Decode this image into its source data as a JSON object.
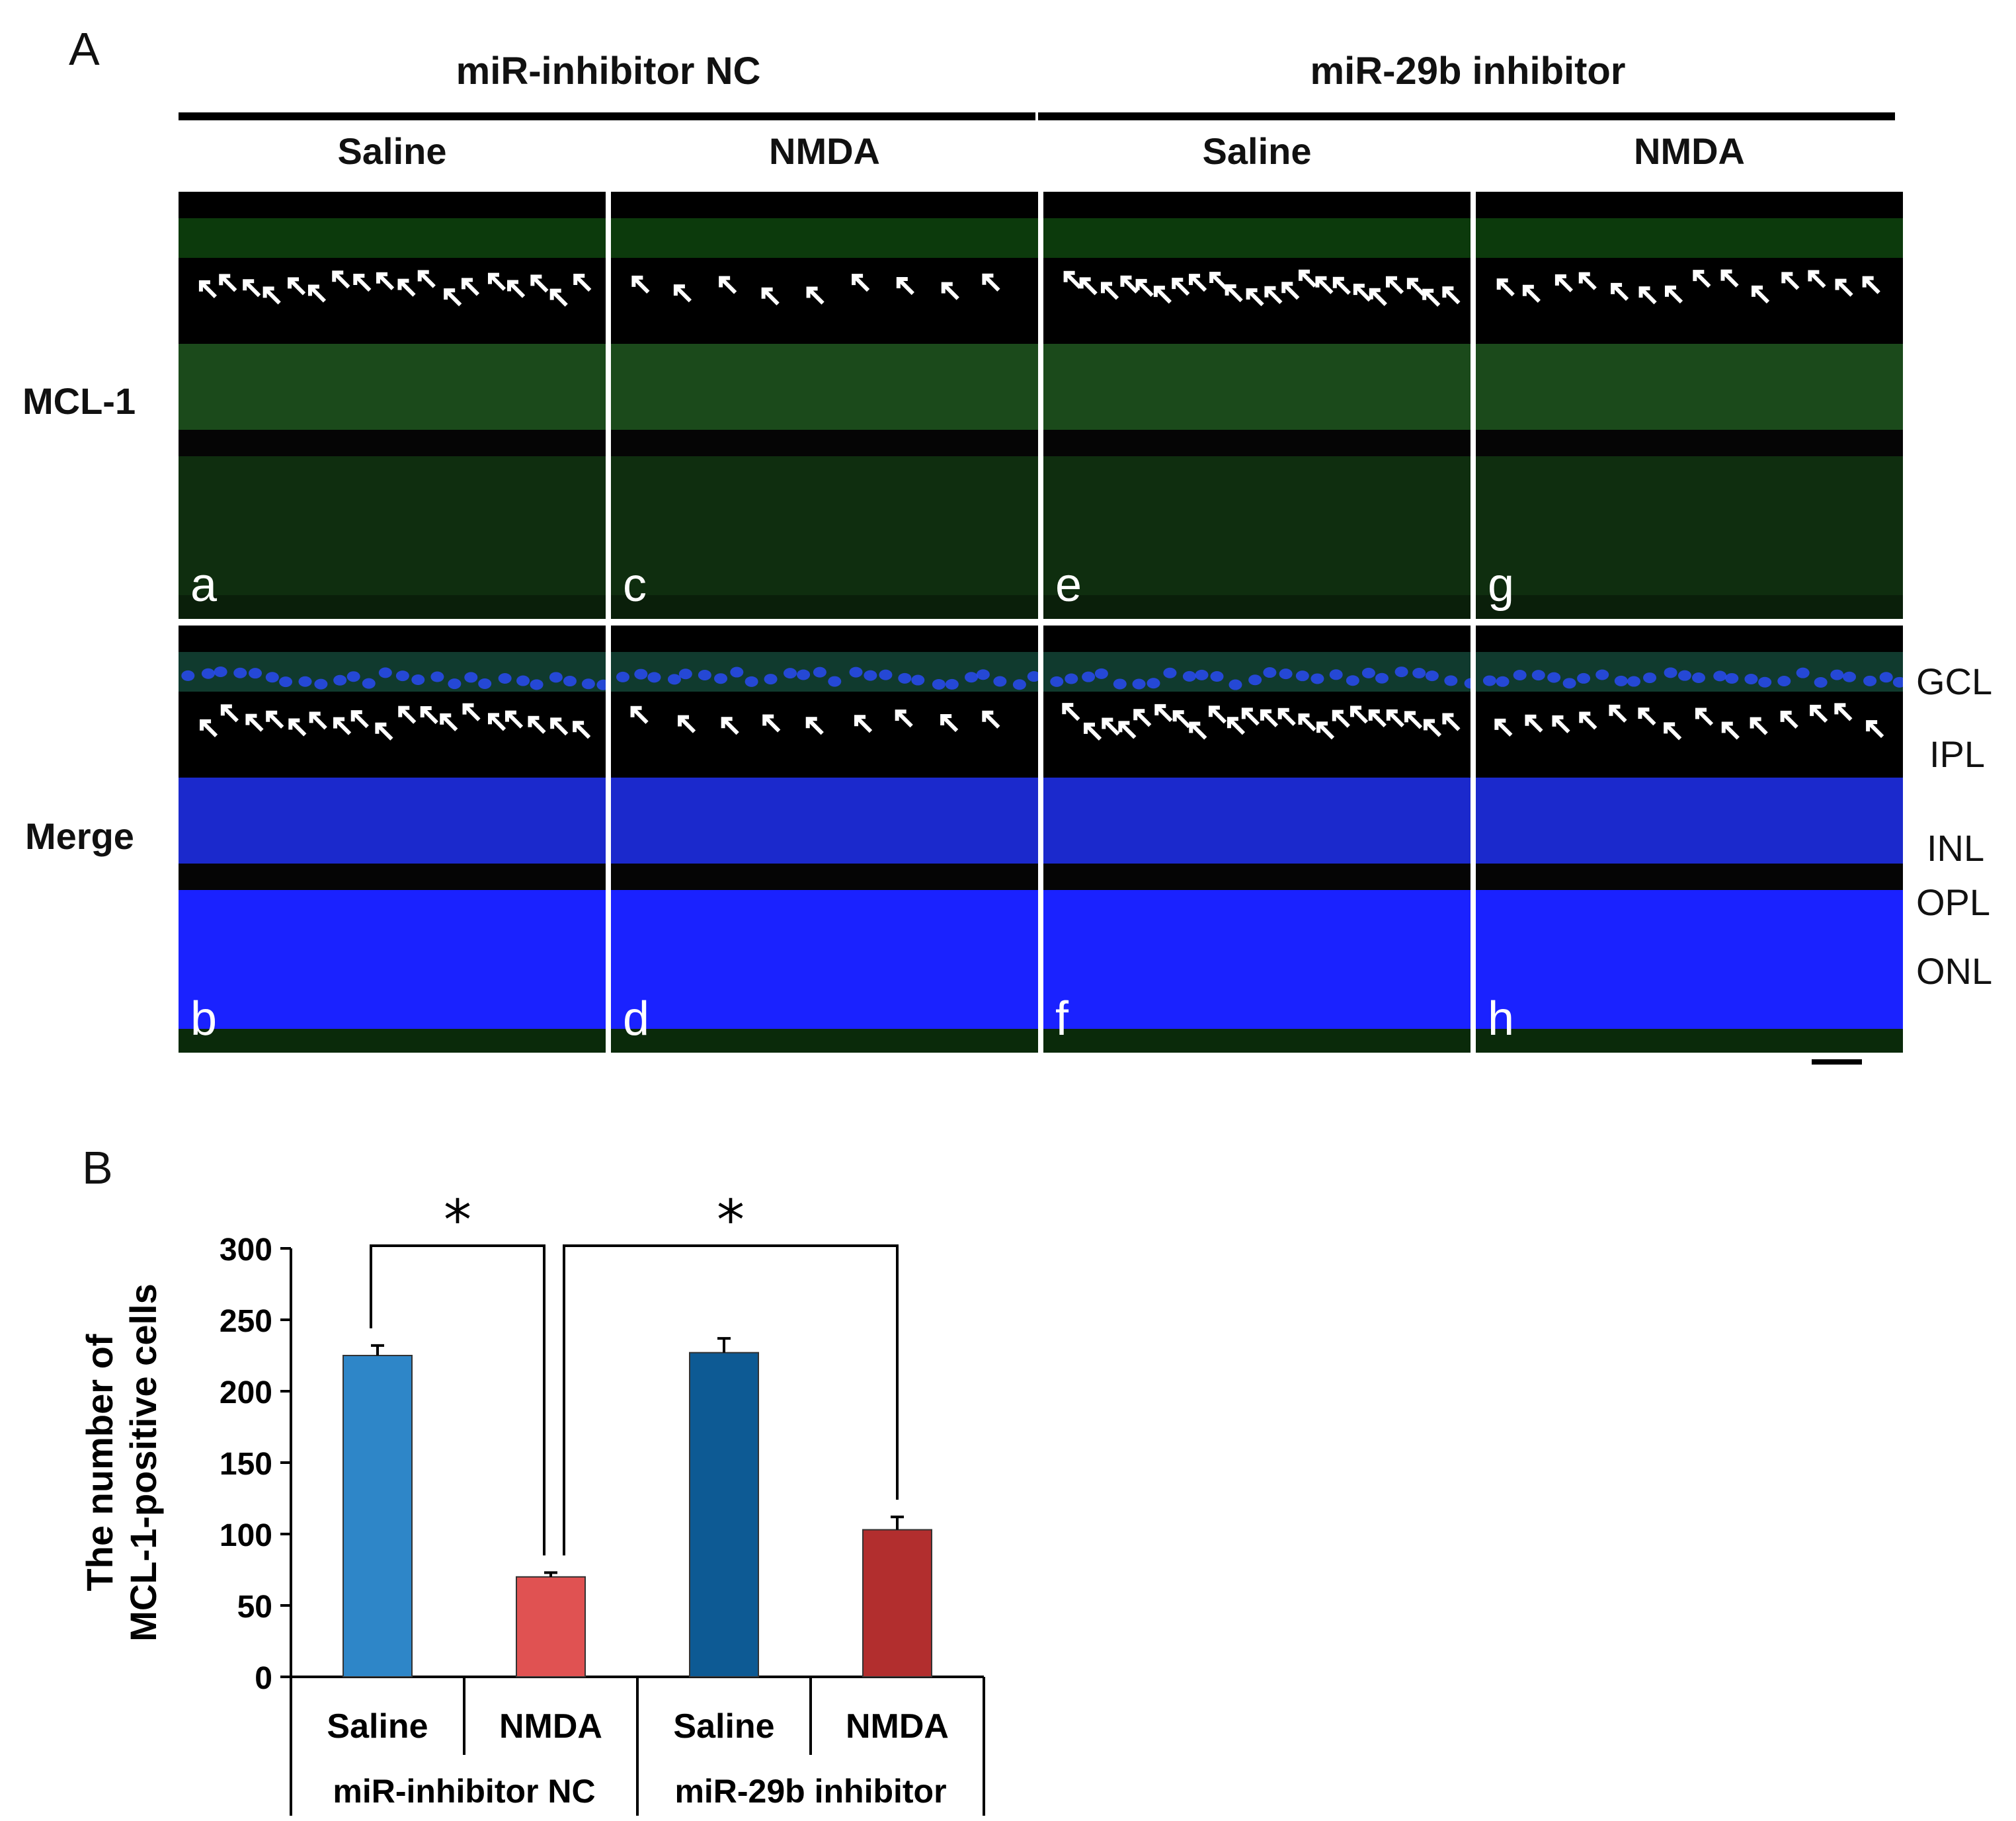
{
  "figure": {
    "panel_a_label": "A",
    "panel_b_label": "B",
    "groups": [
      "miR-inhibitor NC",
      "miR-29b inhibitor"
    ],
    "columns": [
      "Saline",
      "NMDA",
      "Saline",
      "NMDA"
    ],
    "rows": [
      "MCL-1",
      "Merge"
    ],
    "tiles": [
      {
        "label": "a",
        "stain": "mcl1",
        "arrows": 18
      },
      {
        "label": "c",
        "stain": "mcl1",
        "arrows": 9
      },
      {
        "label": "e",
        "stain": "mcl1",
        "arrows": 22
      },
      {
        "label": "g",
        "stain": "mcl1",
        "arrows": 14
      },
      {
        "label": "b",
        "stain": "merge",
        "arrows": 18
      },
      {
        "label": "d",
        "stain": "merge",
        "arrows": 9
      },
      {
        "label": "f",
        "stain": "merge",
        "arrows": 22
      },
      {
        "label": "h",
        "stain": "merge",
        "arrows": 14
      }
    ],
    "layers": [
      "GCL",
      "IPL",
      "INL",
      "OPL",
      "ONL"
    ],
    "colors": {
      "green": "#2f9a2f",
      "blue": "#1a1aff",
      "black": "#000000"
    }
  },
  "chart_data": {
    "type": "bar",
    "ylabel_line1": "The number of",
    "ylabel_line2": "MCL-1-positive cells",
    "ylim": [
      0,
      300
    ],
    "yticks": [
      0,
      50,
      100,
      150,
      200,
      250,
      300
    ],
    "categories": [
      "Saline",
      "NMDA",
      "Saline",
      "NMDA"
    ],
    "groups": [
      "miR-inhibitor NC",
      "miR-29b inhibitor"
    ],
    "values": [
      225,
      70,
      227,
      103
    ],
    "errors": [
      7,
      3,
      10,
      9
    ],
    "colors": [
      "#2e86c8",
      "#e05252",
      "#0d5a94",
      "#b22e2e"
    ],
    "significance": [
      {
        "pair": [
          0,
          1
        ],
        "mark": "*"
      },
      {
        "pair": [
          1,
          3
        ],
        "mark": "*"
      }
    ]
  }
}
